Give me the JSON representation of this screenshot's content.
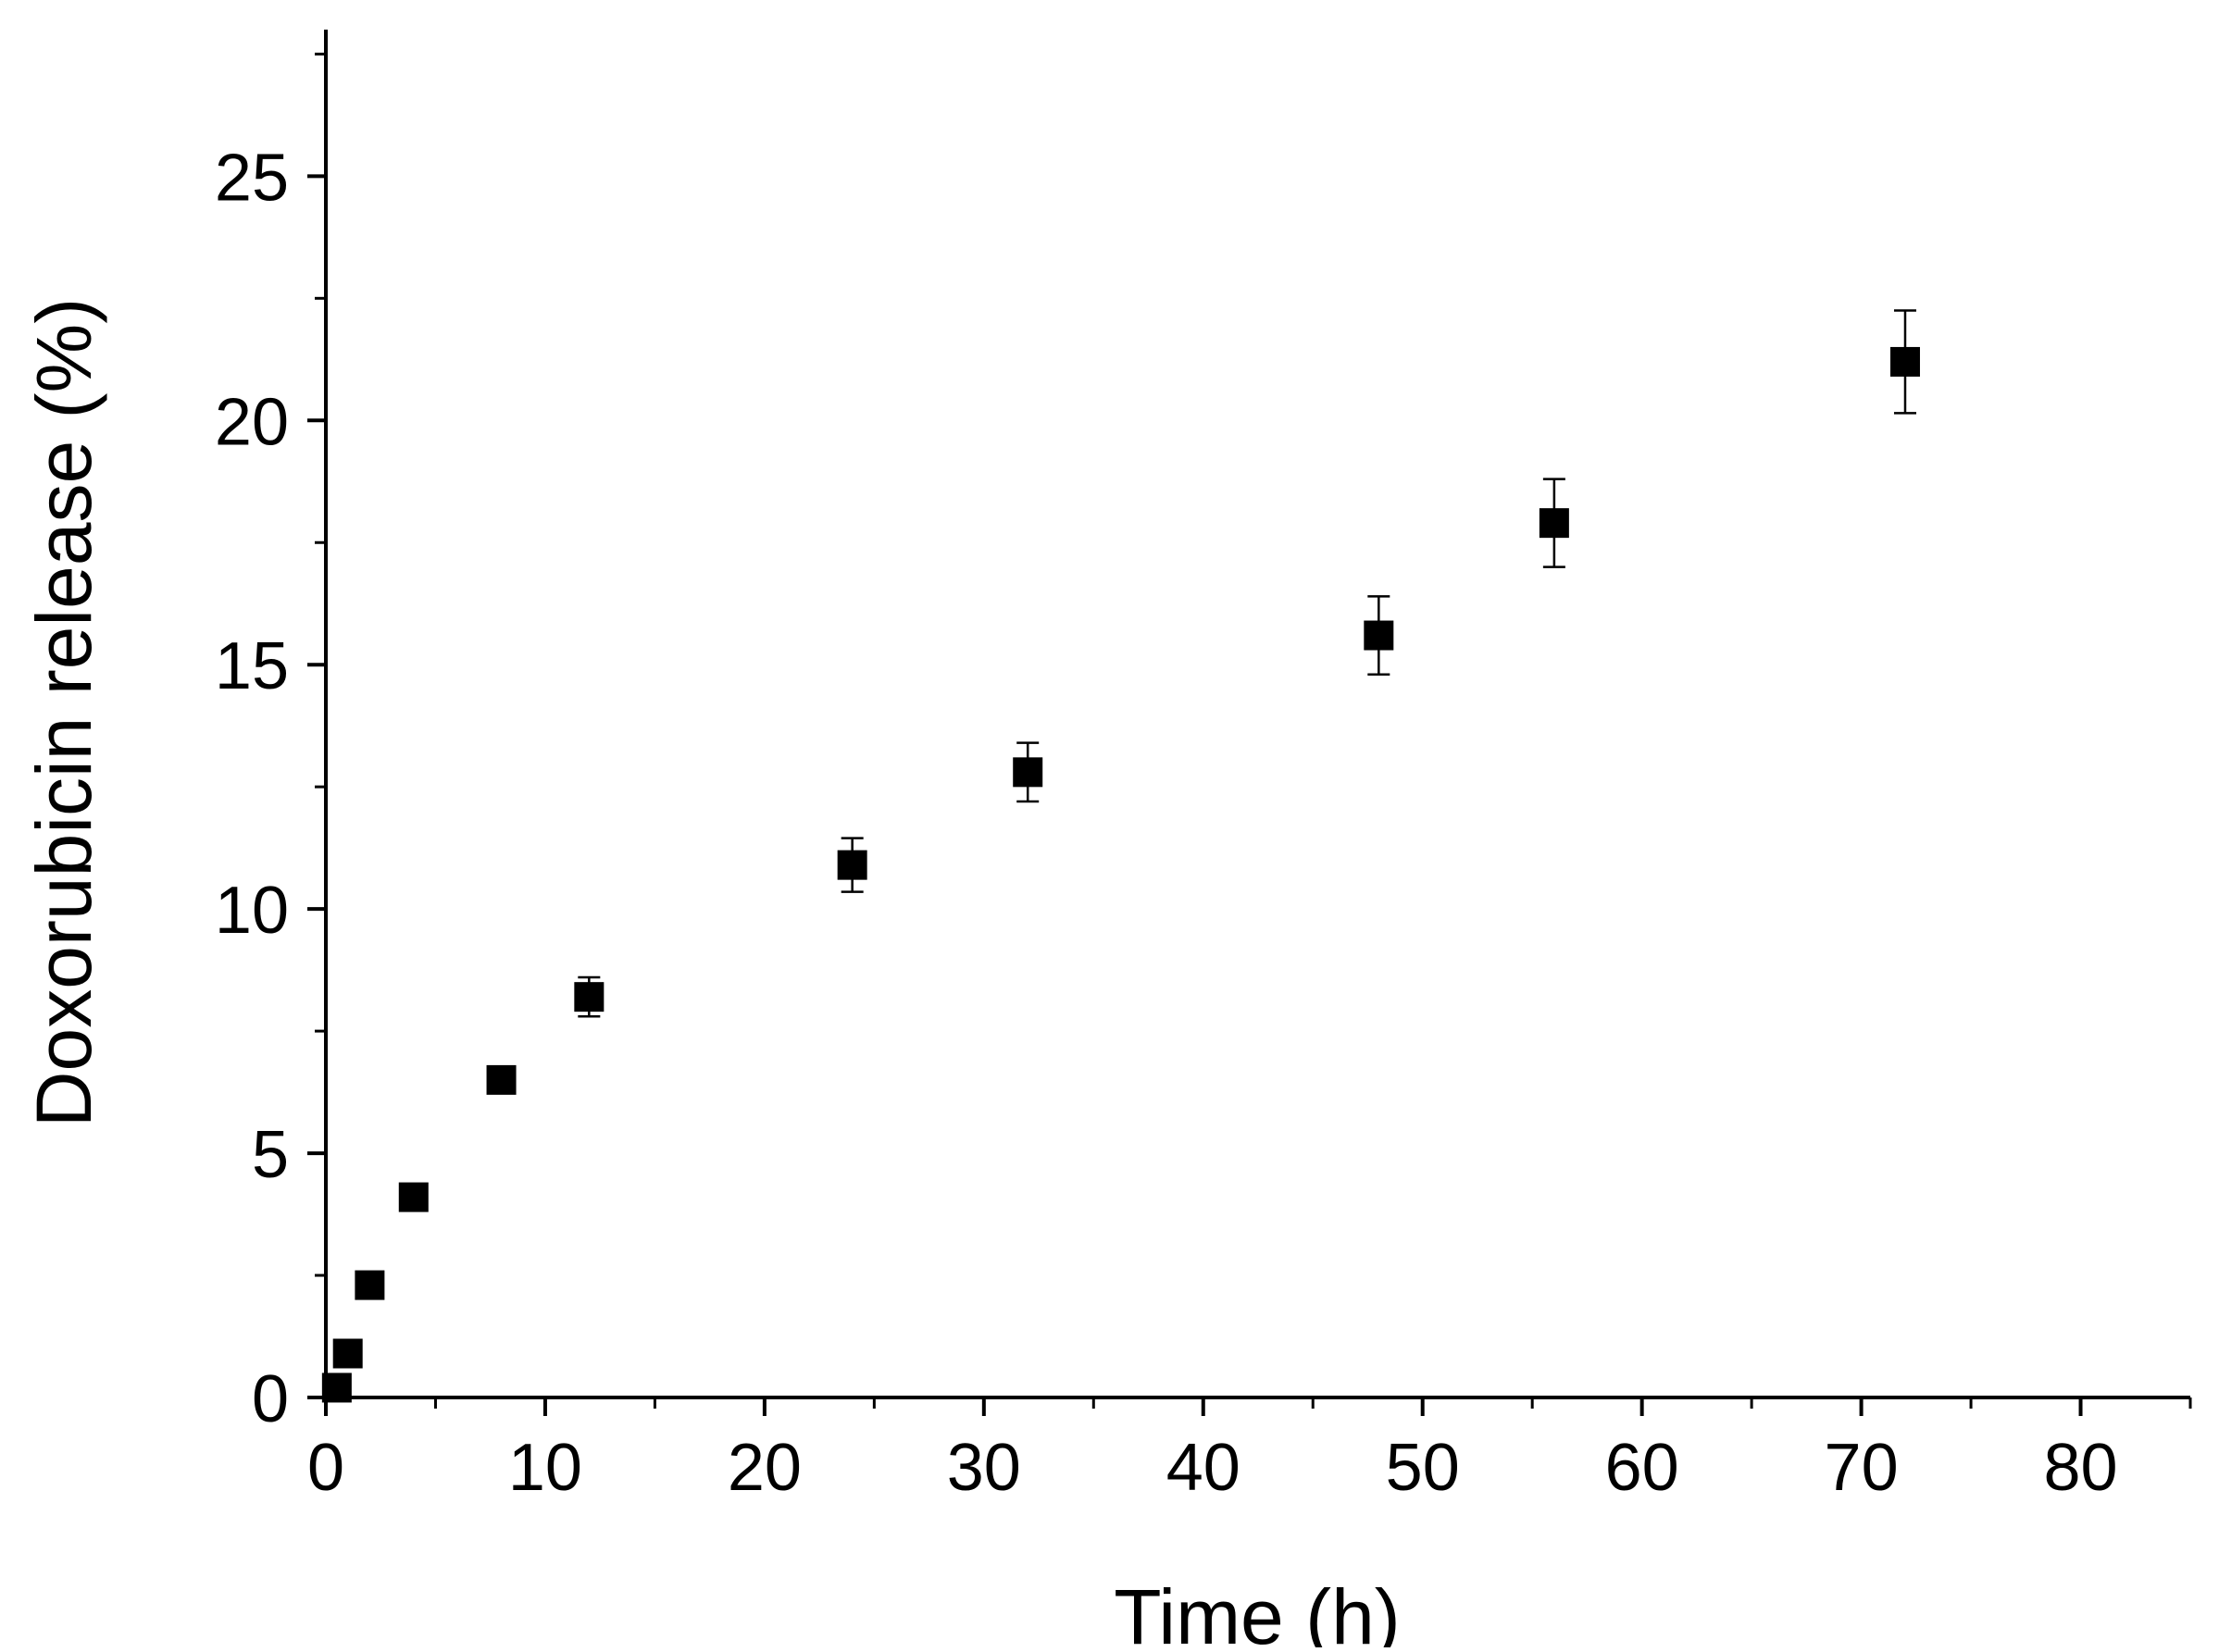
{
  "chart_data": {
    "type": "scatter",
    "title": "",
    "xlabel": "Time (h)",
    "ylabel": "Doxorubicin release (%)",
    "xlim": [
      0,
      85
    ],
    "ylim": [
      0,
      28
    ],
    "x_ticks": [
      0,
      10,
      20,
      30,
      40,
      50,
      60,
      70,
      80
    ],
    "x_tick_labels": [
      "0",
      "10",
      "20",
      "30",
      "40",
      "50",
      "60",
      "70",
      "80"
    ],
    "y_ticks": [
      0,
      5,
      10,
      15,
      20,
      25
    ],
    "y_tick_labels": [
      "0",
      "5",
      "10",
      "15",
      "20",
      "25"
    ],
    "grid": false,
    "legend": "none",
    "marker": "filled-square",
    "series": [
      {
        "x": [
          0.5,
          1,
          2,
          4,
          8,
          12,
          24,
          32,
          48,
          56,
          72
        ],
        "y": [
          0.2,
          0.9,
          2.3,
          4.1,
          6.5,
          8.2,
          10.9,
          12.8,
          15.6,
          17.9,
          21.2
        ],
        "error": [
          0.1,
          0.15,
          0.15,
          0.2,
          0.2,
          0.4,
          0.55,
          0.6,
          0.8,
          0.9,
          1.05
        ]
      }
    ],
    "colors": {
      "axes": "#000000",
      "marker": "#000000",
      "background": "#ffffff"
    }
  }
}
